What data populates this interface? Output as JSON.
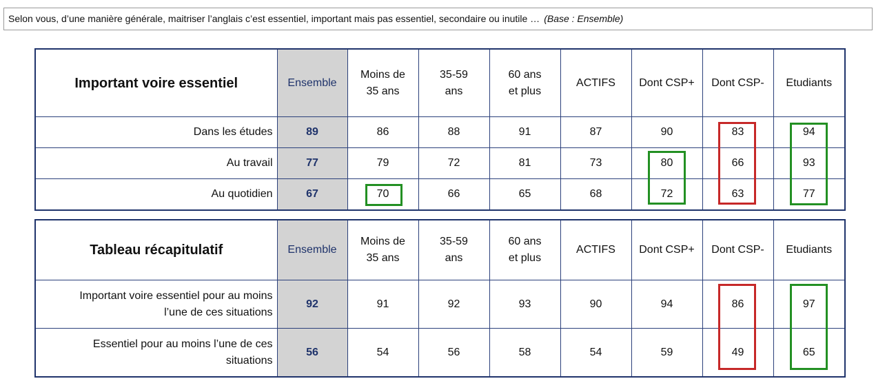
{
  "question": {
    "text": "Selon vous, d’une manière générale, maitriser l’anglais c’est essentiel, important mais pas essentiel, secondaire ou inutile …",
    "base": "(Base : Ensemble)"
  },
  "columns": [
    "Ensemble",
    "Moins de 35 ans",
    "35-59 ans",
    "60 ans et plus",
    "ACTIFS",
    "Dont CSP+",
    "Dont CSP-",
    "Etudiants"
  ],
  "header_lines": {
    "ensemble": "Ensemble",
    "moins1": "Moins de",
    "moins2": "35 ans",
    "mid1": "35-59",
    "mid2": "ans",
    "old1": "60 ans",
    "old2": "et plus",
    "actifs": "ACTIFS",
    "cspp": "Dont CSP+",
    "cspm": "Dont CSP-",
    "etud": "Etudiants"
  },
  "table1": {
    "title": "Important voire essentiel",
    "rows": [
      {
        "label": "Dans les études",
        "values": [
          "89",
          "86",
          "88",
          "91",
          "87",
          "90",
          "83",
          "94"
        ]
      },
      {
        "label": "Au travail",
        "values": [
          "77",
          "79",
          "72",
          "81",
          "73",
          "80",
          "66",
          "93"
        ]
      },
      {
        "label": "Au quotidien",
        "values": [
          "67",
          "70",
          "66",
          "65",
          "68",
          "72",
          "63",
          "77"
        ]
      }
    ]
  },
  "table2": {
    "title": "Tableau récapitulatif",
    "rows": [
      {
        "label1": "Important voire essentiel pour au moins",
        "label2": "l’une de ces situations",
        "values": [
          "92",
          "91",
          "92",
          "93",
          "90",
          "94",
          "86",
          "97"
        ]
      },
      {
        "label1": "Essentiel pour au moins l’une de ces",
        "label2": "situations",
        "values": [
          "56",
          "54",
          "56",
          "58",
          "54",
          "59",
          "49",
          "65"
        ]
      }
    ]
  },
  "colors": {
    "title_green": "#1f8a1f",
    "border_navy": "#1f336b",
    "highlight_green": "#239023",
    "highlight_red": "#c62828",
    "ensemble_bg": "#d3d3d3"
  }
}
